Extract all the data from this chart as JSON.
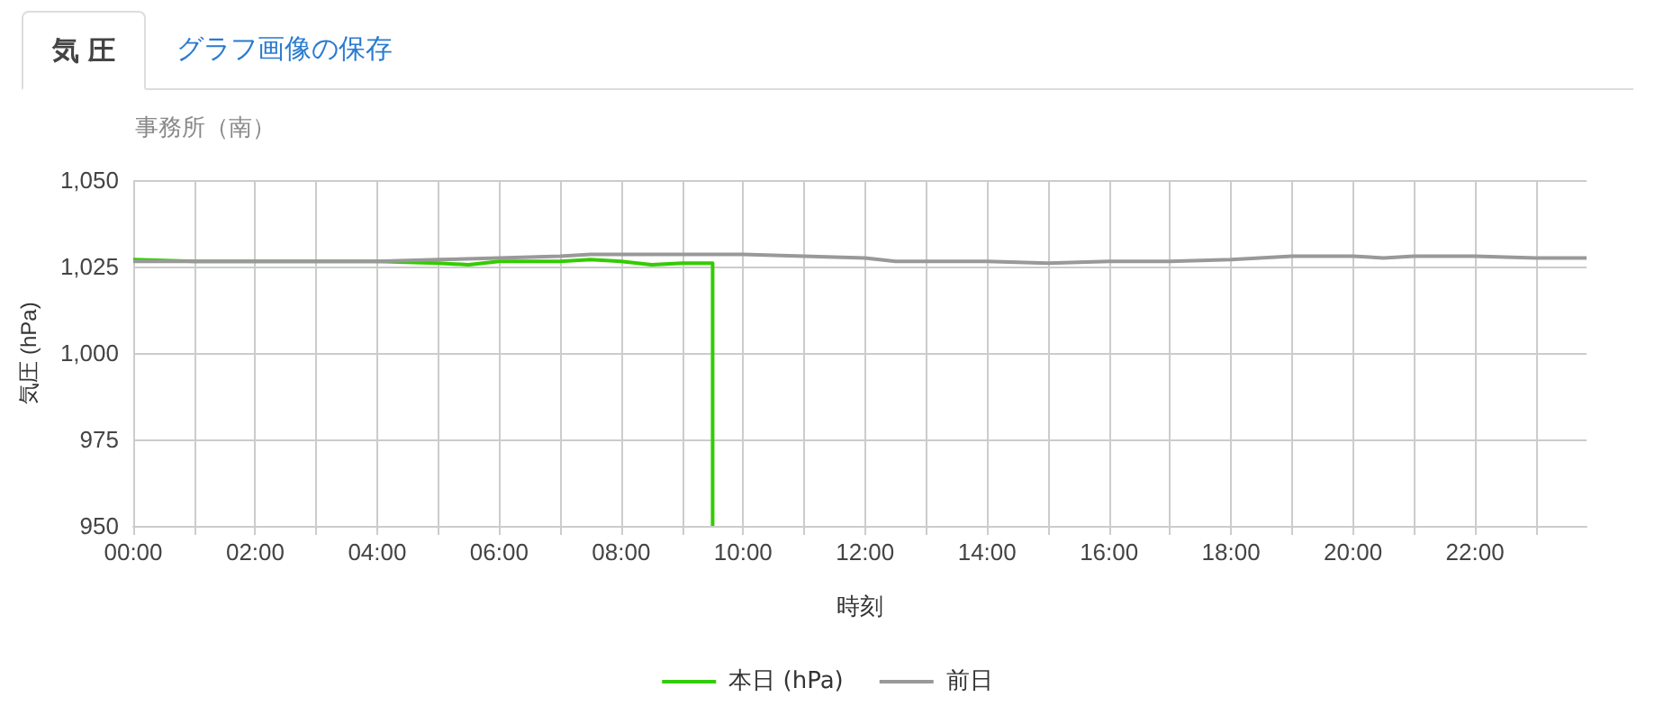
{
  "chart_data": {
    "type": "line",
    "title": "事務所（南）",
    "xlabel": "時刻",
    "ylabel": "気圧 (hPa)",
    "annotations": [
      "気 圧",
      "グラフ画像の保存"
    ],
    "xlim": [
      0,
      23.83
    ],
    "ylim": [
      950,
      1050
    ],
    "xticks": [
      {
        "value": 0,
        "label": "00:00"
      },
      {
        "value": 1,
        "label": null
      },
      {
        "value": 2,
        "label": "02:00"
      },
      {
        "value": 3,
        "label": null
      },
      {
        "value": 4,
        "label": "04:00"
      },
      {
        "value": 5,
        "label": null
      },
      {
        "value": 6,
        "label": "06:00"
      },
      {
        "value": 7,
        "label": null
      },
      {
        "value": 8,
        "label": "08:00"
      },
      {
        "value": 9,
        "label": null
      },
      {
        "value": 10,
        "label": "10:00"
      },
      {
        "value": 11,
        "label": null
      },
      {
        "value": 12,
        "label": "12:00"
      },
      {
        "value": 13,
        "label": null
      },
      {
        "value": 14,
        "label": "14:00"
      },
      {
        "value": 15,
        "label": null
      },
      {
        "value": 16,
        "label": "16:00"
      },
      {
        "value": 17,
        "label": null
      },
      {
        "value": 18,
        "label": "18:00"
      },
      {
        "value": 19,
        "label": null
      },
      {
        "value": 20,
        "label": "20:00"
      },
      {
        "value": 21,
        "label": null
      },
      {
        "value": 22,
        "label": "22:00"
      },
      {
        "value": 23,
        "label": null
      }
    ],
    "yticks": [
      {
        "value": 950,
        "label": "950"
      },
      {
        "value": 975,
        "label": "975"
      },
      {
        "value": 1000,
        "label": "1,000"
      },
      {
        "value": 1025,
        "label": "1,025"
      },
      {
        "value": 1050,
        "label": "1,050"
      }
    ],
    "grid": true,
    "legend": "bottom",
    "marker": "none",
    "line_style": "solid",
    "series": [
      {
        "name": "本日 (hPa)",
        "color": "#33cc00",
        "x": [
          0,
          1,
          2,
          3,
          4,
          5,
          5.5,
          6,
          7,
          7.5,
          8,
          8.5,
          9,
          9.5,
          9.5
        ],
        "values": [
          1027,
          1026.5,
          1026.5,
          1026.5,
          1026.5,
          1026,
          1025.5,
          1026.5,
          1026.5,
          1027,
          1026.5,
          1025.5,
          1026,
          1026,
          950
        ]
      },
      {
        "name": "前日",
        "color": "#999999",
        "x": [
          0,
          1,
          2,
          3,
          4,
          5,
          6,
          7,
          7.5,
          8,
          9,
          10,
          11,
          12,
          12.5,
          13,
          14,
          15,
          16,
          17,
          18,
          19,
          20,
          20.5,
          21,
          22,
          23,
          23.83
        ],
        "values": [
          1026.5,
          1026.5,
          1026.5,
          1026.5,
          1026.5,
          1027,
          1027.5,
          1028,
          1028.5,
          1028.5,
          1028.5,
          1028.5,
          1028,
          1027.5,
          1026.5,
          1026.5,
          1026.5,
          1026,
          1026.5,
          1026.5,
          1027,
          1028,
          1028,
          1027.5,
          1028,
          1028,
          1027.5,
          1027.5
        ]
      }
    ]
  }
}
